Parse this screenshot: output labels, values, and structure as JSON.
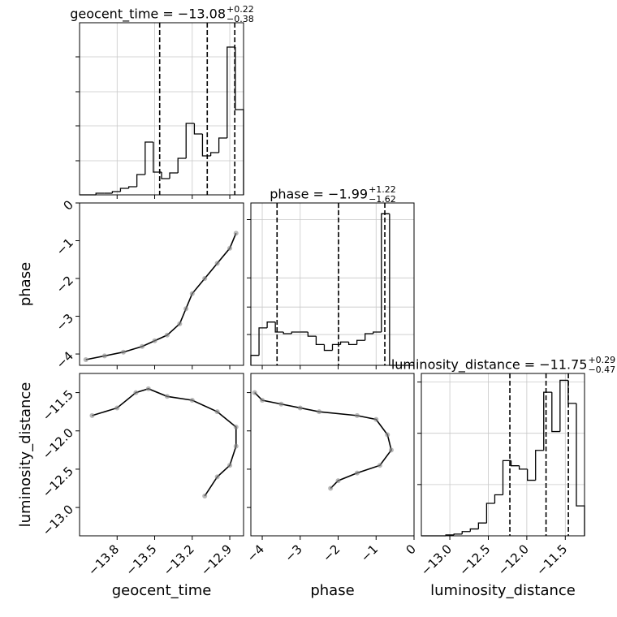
{
  "chart_data": {
    "type": "corner",
    "grid": true,
    "params": [
      {
        "label": "geocent_time",
        "lim": [
          -14.1,
          -12.79
        ],
        "ticks": [
          {
            "value": -13.8,
            "label": "−13.8"
          },
          {
            "value": -13.5,
            "label": "−13.5"
          },
          {
            "value": -13.2,
            "label": "−13.2"
          },
          {
            "value": -12.9,
            "label": "−12.9"
          }
        ],
        "title": {
          "text": "geocent_time = −13.08",
          "upper": "+0.22",
          "lower": "−0.38"
        },
        "quantiles": [
          -13.46,
          -13.08,
          -12.86
        ],
        "bins": [
          -14.1,
          -14.035,
          -13.969,
          -13.904,
          -13.838,
          -13.773,
          -13.707,
          -13.642,
          -13.576,
          -13.511,
          -13.445,
          -13.38,
          -13.314,
          -13.249,
          -13.183,
          -13.118,
          -13.052,
          -12.987,
          -12.921,
          -12.856,
          -12.79
        ],
        "counts": [
          0,
          0,
          2,
          2,
          4,
          8,
          10,
          25,
          65,
          28,
          20,
          27,
          45,
          88,
          75,
          48,
          52,
          70,
          182,
          105
        ],
        "hist_ylim": [
          0,
          212
        ],
        "hist_yticks": [
          42,
          85,
          127,
          170
        ]
      },
      {
        "label": "phase",
        "lim": [
          -4.3,
          0
        ],
        "ticks": [
          {
            "value": -4,
            "label": "−4"
          },
          {
            "value": -3,
            "label": "−3"
          },
          {
            "value": -2,
            "label": "−2"
          },
          {
            "value": -1,
            "label": "−1"
          },
          0
        ],
        "title": {
          "text": "phase = −1.99",
          "upper": "+1.22",
          "lower": "−1.62"
        },
        "quantiles": [
          -3.61,
          -1.99,
          -0.77
        ],
        "bins": [
          -4.3,
          -4.085,
          -3.87,
          -3.655,
          -3.44,
          -3.225,
          -3.01,
          -2.795,
          -2.58,
          -2.365,
          -2.15,
          -1.935,
          -1.72,
          -1.505,
          -1.29,
          -1.075,
          -0.86,
          -0.645,
          -0.43,
          -0.215,
          0
        ],
        "counts": [
          12,
          45,
          52,
          40,
          38,
          40,
          40,
          35,
          25,
          18,
          25,
          28,
          25,
          30,
          38,
          40,
          182,
          0,
          0,
          0
        ],
        "hist_ylim": [
          0,
          195
        ],
        "hist_yticks": [
          37,
          70,
          105,
          175
        ]
      },
      {
        "label": "luminosity_distance",
        "lim": [
          -13.37,
          -11.25
        ],
        "ticks": [
          {
            "value": -13.0,
            "label": "−13.0"
          },
          {
            "value": -12.5,
            "label": "−12.5"
          },
          {
            "value": -12.0,
            "label": "−12.0"
          },
          {
            "value": -11.5,
            "label": "−11.5"
          }
        ],
        "title": {
          "text": "luminosity_distance = −11.75",
          "upper": "+0.29",
          "lower": "−0.47"
        },
        "quantiles": [
          -12.22,
          -11.75,
          -11.46
        ],
        "bins": [
          -13.37,
          -13.264,
          -13.158,
          -13.052,
          -12.946,
          -12.84,
          -12.734,
          -12.628,
          -12.522,
          -12.416,
          -12.31,
          -12.204,
          -12.098,
          -11.992,
          -11.886,
          -11.78,
          -11.674,
          -11.568,
          -11.462,
          -11.356,
          -11.25
        ],
        "counts": [
          0,
          0,
          0,
          1,
          2,
          5,
          8,
          15,
          38,
          48,
          88,
          82,
          78,
          65,
          100,
          168,
          122,
          182,
          155,
          35
        ],
        "hist_ylim": [
          0,
          190
        ],
        "hist_yticks": [
          60,
          120,
          180
        ]
      }
    ],
    "pairs": [
      {
        "xparam": 0,
        "yparam": 1,
        "x": [
          -14.05,
          -13.9,
          -13.75,
          -13.6,
          -13.5,
          -13.4,
          -13.3,
          -13.25,
          -13.2,
          -13.1,
          -13.0,
          -12.9,
          -12.85
        ],
        "y": [
          -4.15,
          -4.05,
          -3.95,
          -3.8,
          -3.65,
          -3.5,
          -3.2,
          -2.8,
          -2.4,
          -2.0,
          -1.6,
          -1.2,
          -0.8
        ]
      },
      {
        "xparam": 0,
        "yparam": 2,
        "x": [
          -14.0,
          -13.8,
          -13.65,
          -13.55,
          -13.4,
          -13.2,
          -13.0,
          -12.85,
          -12.85,
          -12.9,
          -13.0,
          -13.1
        ],
        "y": [
          -11.8,
          -11.7,
          -11.5,
          -11.45,
          -11.55,
          -11.6,
          -11.75,
          -11.95,
          -12.2,
          -12.45,
          -12.6,
          -12.85
        ]
      },
      {
        "xparam": 1,
        "yparam": 2,
        "x": [
          -4.2,
          -4.0,
          -3.5,
          -3.0,
          -2.5,
          -1.5,
          -1.0,
          -0.7,
          -0.6,
          -0.9,
          -1.5,
          -2.0,
          -2.2
        ],
        "y": [
          -11.5,
          -11.6,
          -11.65,
          -11.7,
          -11.75,
          -11.8,
          -11.85,
          -12.05,
          -12.25,
          -12.45,
          -12.55,
          -12.65,
          -12.75
        ]
      }
    ]
  }
}
